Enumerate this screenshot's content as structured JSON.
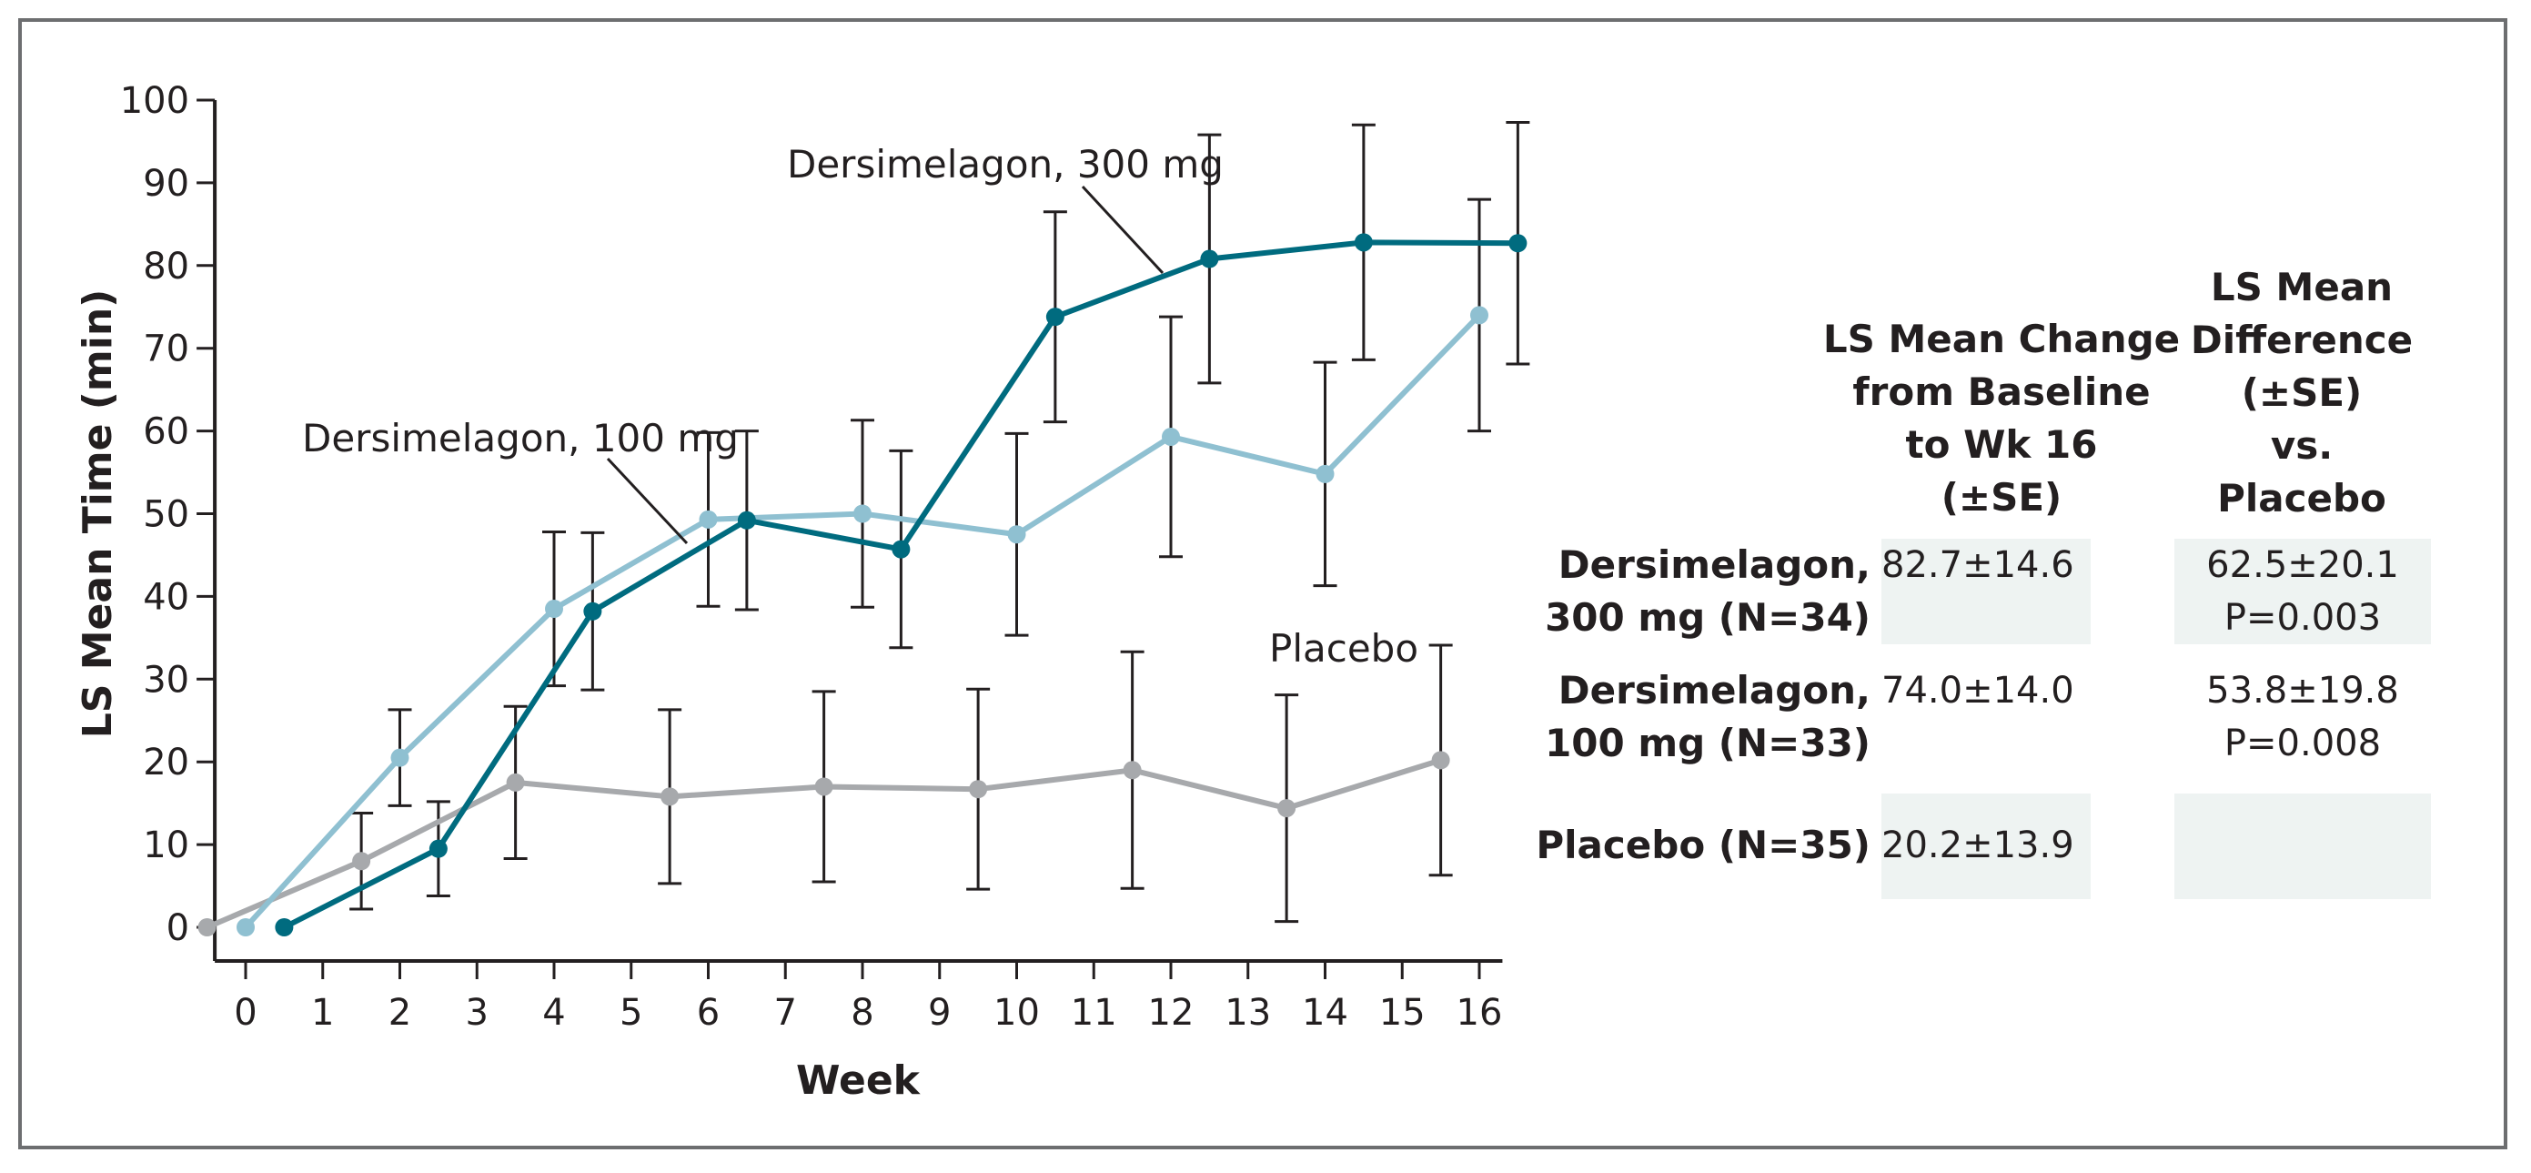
{
  "chart_data": {
    "type": "line",
    "xlabel": "Week",
    "ylabel": "LS Mean Time (min)",
    "xlim": [
      -0.4,
      16.3
    ],
    "ylim": [
      0,
      100
    ],
    "xticks": [
      0,
      1,
      2,
      3,
      4,
      5,
      6,
      7,
      8,
      9,
      10,
      11,
      12,
      13,
      14,
      15,
      16
    ],
    "yticks": [
      0,
      10,
      20,
      30,
      40,
      50,
      60,
      70,
      80,
      90,
      100
    ],
    "series": [
      {
        "name": "Placebo",
        "color": "#a7a9ac",
        "x": [
          -0.5,
          1.5,
          3.5,
          5.5,
          7.5,
          9.5,
          11.5,
          13.5,
          15.5
        ],
        "y": [
          0,
          8,
          17.5,
          15.8,
          17,
          16.7,
          19,
          14.4,
          20.2
        ],
        "err": [
          0,
          5.8,
          9.2,
          10.5,
          11.5,
          12.1,
          14.3,
          13.7,
          13.9
        ]
      },
      {
        "name": "Dersimelagon, 100 mg",
        "color": "#8fc0d1",
        "x": [
          0,
          2,
          4,
          6,
          8,
          10,
          12,
          14,
          16
        ],
        "y": [
          0,
          20.5,
          38.5,
          49.3,
          50,
          47.5,
          59.3,
          54.8,
          74
        ],
        "err": [
          0,
          5.8,
          9.3,
          10.5,
          11.3,
          12.2,
          14.5,
          13.5,
          14.0
        ]
      },
      {
        "name": "Dersimelagon, 300 mg",
        "color": "#006b7f",
        "x": [
          0.5,
          2.5,
          4.5,
          6.5,
          8.5,
          10.5,
          12.5,
          14.5,
          16.5
        ],
        "y": [
          0,
          9.5,
          38.2,
          49.2,
          45.7,
          73.8,
          80.8,
          82.8,
          82.7
        ],
        "err": [
          0,
          5.7,
          9.5,
          10.8,
          11.9,
          12.7,
          15,
          14.2,
          14.6
        ]
      }
    ],
    "annotations": [
      {
        "label": "Dersimelagon, 300 mg",
        "series": "Dersimelagon, 300 mg"
      },
      {
        "label": "Dersimelagon, 100 mg",
        "series": "Dersimelagon, 100 mg"
      },
      {
        "label": "Placebo",
        "series": "Placebo"
      }
    ]
  },
  "table": {
    "col1_header": [
      "LS Mean Change",
      "from Baseline",
      "to Wk 16",
      "(±SE)"
    ],
    "col2_header": [
      "LS Mean",
      "Difference",
      "(±SE)",
      "vs.",
      "Placebo"
    ],
    "rows": [
      {
        "label": [
          "Dersimelagon,",
          "300 mg (N=34)"
        ],
        "change": "82.7±14.6",
        "diff": "62.5±20.1",
        "p": "P=0.003"
      },
      {
        "label": [
          "Dersimelagon,",
          "100 mg (N=33)"
        ],
        "change": "74.0±14.0",
        "diff": "53.8±19.8",
        "p": "P=0.008"
      },
      {
        "label": [
          "Placebo (N=35)"
        ],
        "change": "20.2±13.9",
        "diff": "",
        "p": ""
      }
    ]
  }
}
